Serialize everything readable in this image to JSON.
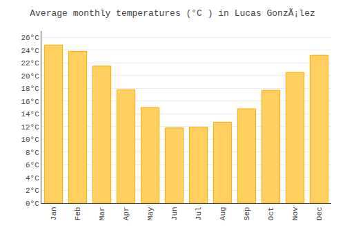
{
  "chart_data": {
    "type": "bar",
    "title": "Average monthly temperatures (°C ) in Lucas GonzÃ¡lez",
    "categories": [
      "Jan",
      "Feb",
      "Mar",
      "Apr",
      "May",
      "Jun",
      "Jul",
      "Aug",
      "Sep",
      "Oct",
      "Nov",
      "Dec"
    ],
    "values": [
      24.8,
      23.8,
      21.5,
      17.8,
      15.0,
      11.8,
      11.9,
      12.7,
      14.8,
      17.7,
      20.5,
      23.2
    ],
    "color": "#FFD060",
    "ylim": [
      0,
      27
    ],
    "yticks": [
      {
        "value": 0,
        "label": "0°C"
      },
      {
        "value": 2,
        "label": "2°C"
      },
      {
        "value": 4,
        "label": "4°C"
      },
      {
        "value": 6,
        "label": "6°C"
      },
      {
        "value": 8,
        "label": "8°C"
      },
      {
        "value": 10,
        "label": "10°C"
      },
      {
        "value": 12,
        "label": "12°C"
      },
      {
        "value": 14,
        "label": "14°C"
      },
      {
        "value": 16,
        "label": "16°C"
      },
      {
        "value": 18,
        "label": "18°C"
      },
      {
        "value": 20,
        "label": "20°C"
      },
      {
        "value": 22,
        "label": "22°C"
      },
      {
        "value": 24,
        "label": "24°C"
      },
      {
        "value": 26,
        "label": "26°C"
      }
    ],
    "grid": true
  }
}
